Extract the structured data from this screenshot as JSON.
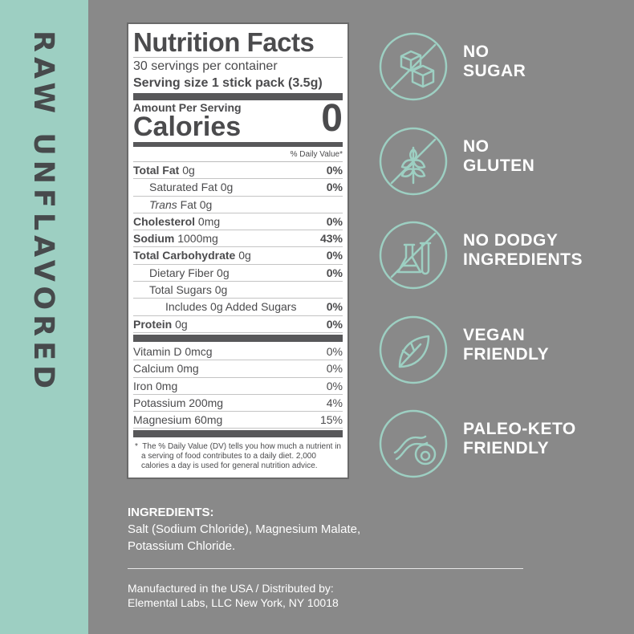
{
  "side_title": "RAW UNFLAVORED",
  "label": {
    "title": "Nutrition Facts",
    "servings": "30 servings per container",
    "serving_size": "Serving size 1 stick pack (3.5g)",
    "amount_per_serving": "Amount Per Serving",
    "calories_label": "Calories",
    "calories_value": "0",
    "dv_header": "% Daily Value*",
    "nutrients": [
      {
        "name": "Total Fat",
        "amount": "0g",
        "dv": "0%"
      },
      {
        "name": "Saturated Fat",
        "amount": "0g",
        "dv": "0%"
      },
      {
        "name": "Trans",
        "amount": "Fat 0g",
        "dv": ""
      },
      {
        "name": "Cholesterol",
        "amount": "0mg",
        "dv": "0%"
      },
      {
        "name": "Sodium",
        "amount": "1000mg",
        "dv": "43%"
      },
      {
        "name": "Total Carbohydrate",
        "amount": "0g",
        "dv": "0%"
      },
      {
        "name": "Dietary Fiber",
        "amount": "0g",
        "dv": "0%"
      },
      {
        "name": "Total Sugars",
        "amount": "0g",
        "dv": ""
      },
      {
        "name": "Includes 0g Added Sugars",
        "amount": "",
        "dv": "0%"
      },
      {
        "name": "Protein",
        "amount": "0g",
        "dv": "0%"
      }
    ],
    "vitamins": [
      {
        "name": "Vitamin D 0mcg",
        "dv": "0%"
      },
      {
        "name": "Calcium 0mg",
        "dv": "0%"
      },
      {
        "name": "Iron 0mg",
        "dv": "0%"
      },
      {
        "name": "Potassium 200mg",
        "dv": "4%"
      },
      {
        "name": "Magnesium 60mg",
        "dv": "15%"
      }
    ],
    "footnote": "The % Daily Value (DV) tells you how much a nutrient in a serving of food contributes to a daily diet. 2,000 calories a day is used for general nutrition advice."
  },
  "claims": [
    {
      "line1": "NO",
      "line2": "SUGAR",
      "icon": "no-sugar-cubes-icon"
    },
    {
      "line1": "NO",
      "line2": "GLUTEN",
      "icon": "no-wheat-icon"
    },
    {
      "line1": "NO DODGY",
      "line2": "INGREDIENTS",
      "icon": "no-lab-flask-icon"
    },
    {
      "line1": "VEGAN",
      "line2": "FRIENDLY",
      "icon": "leaf-icon"
    },
    {
      "line1": "PALEO-KETO",
      "line2": "FRIENDLY",
      "icon": "bacon-avocado-icon"
    }
  ],
  "ingredients": {
    "heading": "INGREDIENTS:",
    "line1": "Salt (Sodium Chloride), Magnesium Malate,",
    "line2": "Potassium Chloride."
  },
  "manufacturer": {
    "line1": "Manufactured in the USA / Distributed by:",
    "line2": "Elemental Labs, LLC New York, NY 10018"
  },
  "colors": {
    "background": "#898989",
    "accent": "#9dcfc2",
    "label_text": "#4b4b4d"
  }
}
